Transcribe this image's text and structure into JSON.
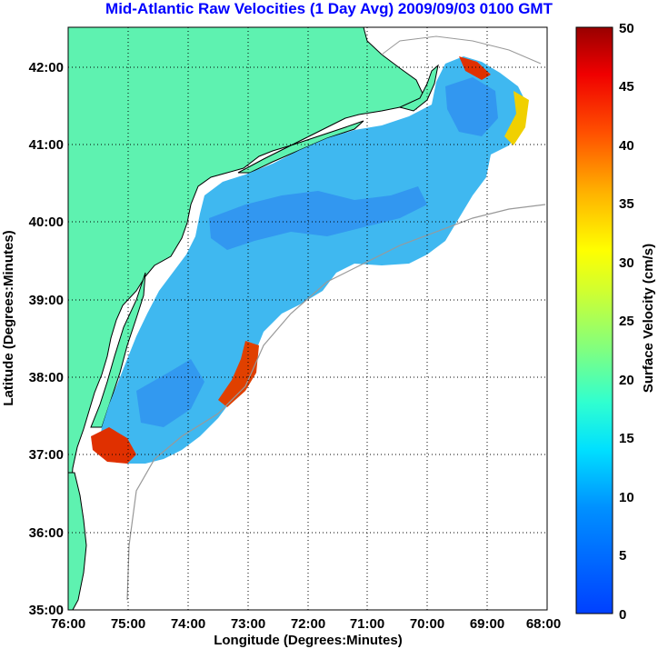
{
  "title": "Mid-Atlantic Raw Velocities (1 Day Avg) 2009/09/03 0100 GMT",
  "xaxis": {
    "label": "Longitude (Degrees:Minutes)",
    "ticks": [
      "76:00",
      "75:00",
      "74:00",
      "73:00",
      "72:00",
      "71:00",
      "70:00",
      "69:00",
      "68:00"
    ],
    "range_deg_west": [
      76,
      68
    ]
  },
  "yaxis": {
    "label": "Latitude (Degrees:Minutes)",
    "ticks": [
      "42:00",
      "41:00",
      "40:00",
      "39:00",
      "38:00",
      "37:00",
      "36:00",
      "35:00"
    ],
    "range_deg_north": [
      35,
      42.5
    ]
  },
  "colorbar": {
    "label": "Surface Velocity (cm/s)",
    "ticks": [
      "50",
      "45",
      "40",
      "35",
      "30",
      "25",
      "20",
      "15",
      "10",
      "5",
      "0"
    ],
    "range": [
      0,
      50
    ],
    "colormap": "jet"
  },
  "colors": {
    "title": "#0000ff",
    "land": "#5ef2b0",
    "coast": "#000000",
    "bathymetry": "#999999",
    "grid": "#000000"
  }
}
